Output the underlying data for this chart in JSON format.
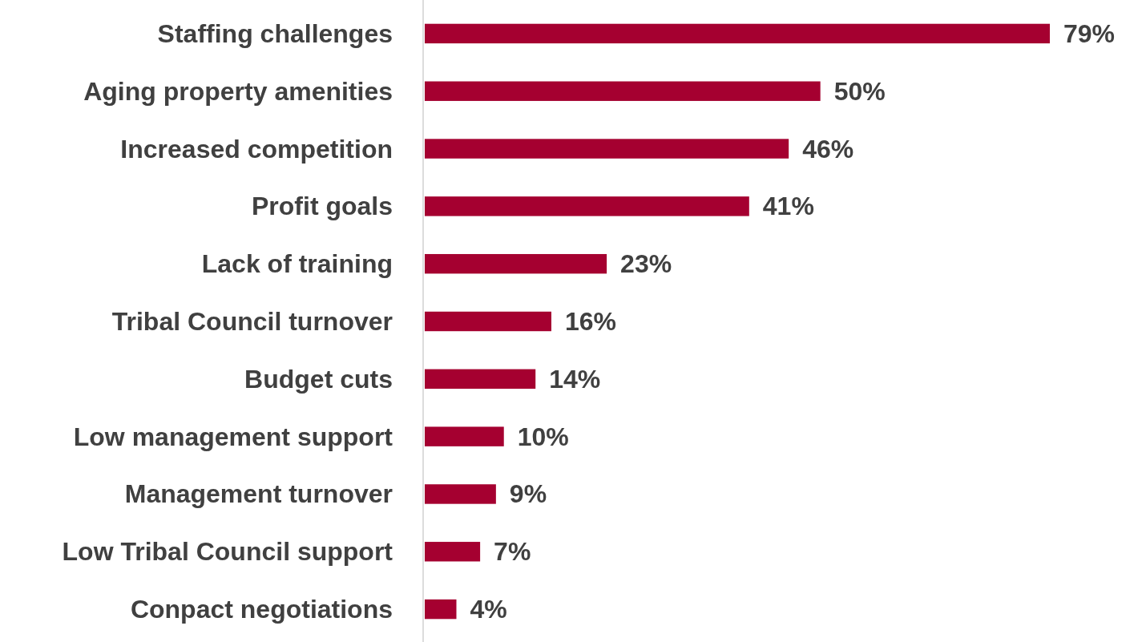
{
  "chart_data": {
    "type": "bar",
    "orientation": "horizontal",
    "categories": [
      "Staffing challenges",
      "Aging property amenities",
      "Increased competition",
      "Profit goals",
      "Lack of training",
      "Tribal Council turnover",
      "Budget cuts",
      "Low management support",
      "Management turnover",
      "Low Tribal Council support",
      "Conpact negotiations"
    ],
    "values": [
      79,
      50,
      46,
      41,
      23,
      16,
      14,
      10,
      9,
      7,
      4
    ],
    "value_labels": [
      "79%",
      "50%",
      "46%",
      "41%",
      "23%",
      "16%",
      "14%",
      "10%",
      "9%",
      "7%",
      "4%"
    ],
    "color": "#a50030"
  }
}
